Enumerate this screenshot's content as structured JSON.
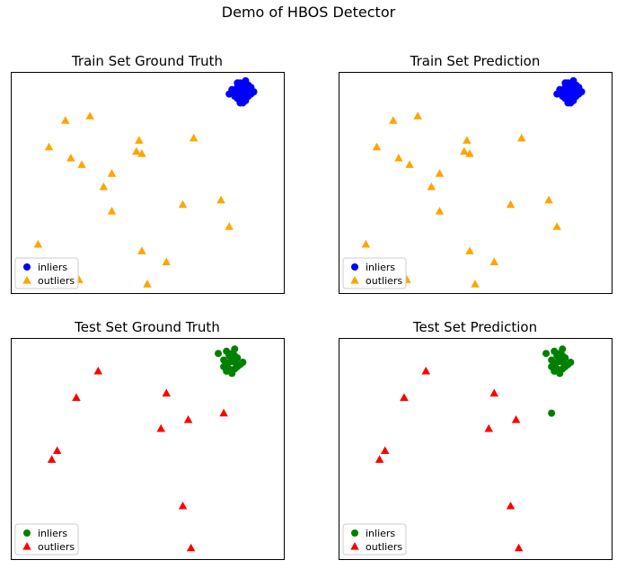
{
  "figure": {
    "suptitle": "Demo of HBOS Detector"
  },
  "chart_data": [
    {
      "type": "scatter",
      "title": "Train Set Ground Truth",
      "xlim": [
        0,
        100
      ],
      "ylim": [
        0,
        100
      ],
      "grid": false,
      "axis_ticks": false,
      "legend_position": "lower-left",
      "series": [
        {
          "name": "inliers",
          "marker": "circle",
          "color": "#0000ff",
          "points": [
            [
              84,
              92
            ],
            [
              85,
              93
            ],
            [
              86,
              91
            ],
            [
              83,
              90
            ],
            [
              87,
              89
            ],
            [
              85,
              88
            ],
            [
              84,
              90
            ],
            [
              86,
              94
            ],
            [
              83,
              93
            ],
            [
              82,
              91
            ],
            [
              85,
              90
            ],
            [
              87,
              92
            ],
            [
              86,
              87
            ],
            [
              84,
              87
            ],
            [
              88,
              90
            ],
            [
              82,
              89
            ],
            [
              84,
              95
            ],
            [
              85,
              86
            ],
            [
              87,
              94
            ],
            [
              83,
              88
            ],
            [
              81,
              92
            ],
            [
              89,
              91
            ],
            [
              86,
              96
            ],
            [
              84,
              86
            ],
            [
              88,
              93
            ],
            [
              80,
              90
            ],
            [
              83,
              95
            ],
            [
              85,
              92
            ],
            [
              87,
              90
            ],
            [
              86,
              89
            ]
          ]
        },
        {
          "name": "outliers",
          "marker": "triangle",
          "color": "#ffa500",
          "points": [
            [
              20,
              78
            ],
            [
              29,
              80
            ],
            [
              14,
              66
            ],
            [
              22,
              61
            ],
            [
              26,
              58
            ],
            [
              47,
              69
            ],
            [
              46,
              64
            ],
            [
              48,
              63
            ],
            [
              67,
              70
            ],
            [
              37,
              54
            ],
            [
              34,
              48
            ],
            [
              37,
              37
            ],
            [
              63,
              40
            ],
            [
              77,
              42
            ],
            [
              80,
              30
            ],
            [
              10,
              22
            ],
            [
              48,
              19
            ],
            [
              57,
              14
            ],
            [
              25,
              6
            ],
            [
              50,
              4
            ]
          ]
        }
      ]
    },
    {
      "type": "scatter",
      "title": "Train Set Prediction",
      "xlim": [
        0,
        100
      ],
      "ylim": [
        0,
        100
      ],
      "grid": false,
      "axis_ticks": false,
      "legend_position": "lower-left",
      "series": [
        {
          "name": "inliers",
          "marker": "circle",
          "color": "#0000ff",
          "points": [
            [
              84,
              92
            ],
            [
              85,
              93
            ],
            [
              86,
              91
            ],
            [
              83,
              90
            ],
            [
              87,
              89
            ],
            [
              85,
              88
            ],
            [
              84,
              90
            ],
            [
              86,
              94
            ],
            [
              83,
              93
            ],
            [
              82,
              91
            ],
            [
              85,
              90
            ],
            [
              87,
              92
            ],
            [
              86,
              87
            ],
            [
              84,
              87
            ],
            [
              88,
              90
            ],
            [
              82,
              89
            ],
            [
              84,
              95
            ],
            [
              85,
              86
            ],
            [
              87,
              94
            ],
            [
              83,
              88
            ],
            [
              81,
              92
            ],
            [
              89,
              91
            ],
            [
              86,
              96
            ],
            [
              84,
              86
            ],
            [
              88,
              93
            ],
            [
              80,
              90
            ],
            [
              83,
              95
            ],
            [
              85,
              92
            ],
            [
              87,
              90
            ],
            [
              86,
              89
            ]
          ]
        },
        {
          "name": "outliers",
          "marker": "triangle",
          "color": "#ffa500",
          "points": [
            [
              20,
              78
            ],
            [
              29,
              80
            ],
            [
              14,
              66
            ],
            [
              22,
              61
            ],
            [
              26,
              58
            ],
            [
              47,
              69
            ],
            [
              46,
              64
            ],
            [
              48,
              63
            ],
            [
              67,
              70
            ],
            [
              37,
              54
            ],
            [
              34,
              48
            ],
            [
              37,
              37
            ],
            [
              63,
              40
            ],
            [
              77,
              42
            ],
            [
              80,
              30
            ],
            [
              10,
              22
            ],
            [
              48,
              19
            ],
            [
              57,
              14
            ],
            [
              25,
              6
            ],
            [
              50,
              4
            ]
          ]
        }
      ]
    },
    {
      "type": "scatter",
      "title": "Test Set Ground Truth",
      "xlim": [
        0,
        100
      ],
      "ylim": [
        0,
        100
      ],
      "grid": false,
      "axis_ticks": false,
      "legend_position": "lower-left",
      "series": [
        {
          "name": "inliers",
          "marker": "circle",
          "color": "#008000",
          "points": [
            [
              80,
              92
            ],
            [
              81,
              90
            ],
            [
              79,
              88
            ],
            [
              82,
              89
            ],
            [
              80,
              86
            ],
            [
              78,
              87
            ],
            [
              83,
              91
            ],
            [
              81,
              93
            ],
            [
              79,
              94
            ],
            [
              82,
              86
            ],
            [
              84,
              88
            ],
            [
              80,
              89
            ],
            [
              78,
              90
            ],
            [
              83,
              87
            ],
            [
              76,
              93
            ],
            [
              82,
              95
            ],
            [
              81,
              84
            ],
            [
              85,
              89
            ],
            [
              79,
              85
            ],
            [
              82,
              92
            ]
          ]
        },
        {
          "name": "outliers",
          "marker": "triangle",
          "color": "#ff0000",
          "points": [
            [
              32,
              85
            ],
            [
              24,
              73
            ],
            [
              57,
              75
            ],
            [
              65,
              63
            ],
            [
              78,
              66
            ],
            [
              55,
              59
            ],
            [
              17,
              49
            ],
            [
              15,
              45
            ],
            [
              63,
              24
            ],
            [
              66,
              5
            ]
          ]
        }
      ]
    },
    {
      "type": "scatter",
      "title": "Test Set Prediction",
      "xlim": [
        0,
        100
      ],
      "ylim": [
        0,
        100
      ],
      "grid": false,
      "axis_ticks": false,
      "legend_position": "lower-left",
      "series": [
        {
          "name": "inliers",
          "marker": "circle",
          "color": "#008000",
          "points": [
            [
              80,
              92
            ],
            [
              81,
              90
            ],
            [
              79,
              88
            ],
            [
              82,
              89
            ],
            [
              80,
              86
            ],
            [
              78,
              87
            ],
            [
              83,
              91
            ],
            [
              81,
              93
            ],
            [
              79,
              94
            ],
            [
              82,
              86
            ],
            [
              84,
              88
            ],
            [
              80,
              89
            ],
            [
              78,
              90
            ],
            [
              83,
              87
            ],
            [
              76,
              93
            ],
            [
              82,
              95
            ],
            [
              81,
              84
            ],
            [
              85,
              89
            ],
            [
              79,
              85
            ],
            [
              82,
              92
            ],
            [
              78,
              66
            ]
          ]
        },
        {
          "name": "outliers",
          "marker": "triangle",
          "color": "#ff0000",
          "points": [
            [
              32,
              85
            ],
            [
              24,
              73
            ],
            [
              57,
              75
            ],
            [
              65,
              63
            ],
            [
              55,
              59
            ],
            [
              17,
              49
            ],
            [
              15,
              45
            ],
            [
              63,
              24
            ],
            [
              66,
              5
            ]
          ]
        }
      ]
    }
  ]
}
